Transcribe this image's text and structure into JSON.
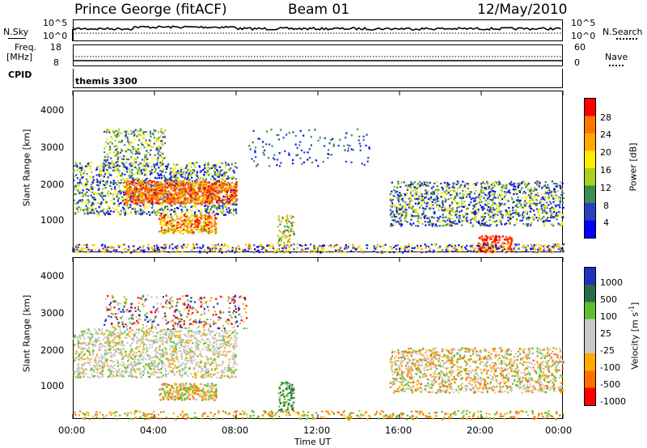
{
  "header": {
    "station": "Prince George (fitACF)",
    "beam": "Beam 01",
    "date": "12/May/2010"
  },
  "top_panels": {
    "nsky_label": "N.Sky",
    "nsky_ticks": [
      "10^5",
      "10^0"
    ],
    "nsearch_label": "N.Search",
    "nsearch_ticks": [
      "10^5",
      "10^0"
    ],
    "freq_label": "Freq.",
    "freq_unit": "[MHz]",
    "freq_ticks": [
      "18",
      "8"
    ],
    "nave_label": "Nave",
    "nave_ticks": [
      "60",
      "0"
    ],
    "cpid_label": "CPID",
    "cpid_value": "themis 3300"
  },
  "chart_data": [
    {
      "type": "heatmap",
      "ylabel": "Slant Range [km]",
      "yticks": [
        "4000",
        "3000",
        "2000",
        "1000"
      ],
      "ylim": [
        180,
        4500
      ],
      "xlim": [
        0,
        24
      ],
      "colorbar": {
        "label": "Power [dB]",
        "ticks": [
          "28",
          "24",
          "20",
          "16",
          "12",
          "8",
          "4"
        ]
      },
      "colors": [
        "#ff0000",
        "#ff7700",
        "#ffaa00",
        "#ffee00",
        "#a8d020",
        "#3c8c50",
        "#2840c0",
        "#0000ff"
      ]
    },
    {
      "type": "heatmap",
      "ylabel": "Slant Range [km]",
      "yticks": [
        "4000",
        "3000",
        "2000",
        "1000"
      ],
      "ylim": [
        180,
        4500
      ],
      "xlim": [
        0,
        24
      ],
      "xlabel": "Time UT",
      "xticks": [
        "00:00",
        "04:00",
        "08:00",
        "12:00",
        "16:00",
        "20:00",
        "00:00"
      ],
      "colorbar": {
        "label": "Velocity [m s",
        "label_sup": "-1",
        "label_end": "]",
        "ticks": [
          "1000",
          "500",
          "100",
          "25",
          "-25",
          "-100",
          "-500",
          "-1000"
        ]
      },
      "colors": [
        "#2030c0",
        "#2a6a4a",
        "#5cc02a",
        "#c8c8c8",
        "#c8c8c8",
        "#ffaa00",
        "#ff7000",
        "#ff0000"
      ]
    }
  ]
}
